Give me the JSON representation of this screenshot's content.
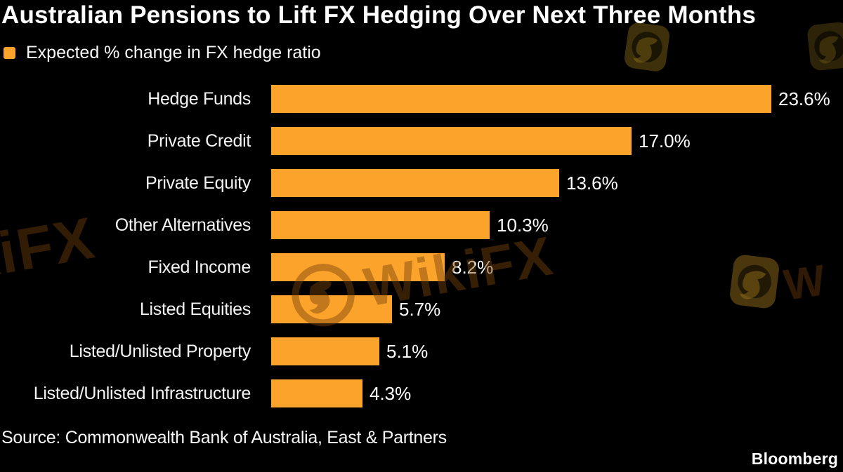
{
  "title": "Australian Pensions to Lift FX Hedging Over Next Three Months",
  "legend": {
    "label": "Expected % change in FX hedge ratio",
    "swatch_color": "#FCA32B"
  },
  "chart_data": {
    "type": "bar",
    "orientation": "horizontal",
    "title": "Australian Pensions to Lift FX Hedging Over Next Three Months",
    "series_label": "Expected % change in FX hedge ratio",
    "categories": [
      "Hedge Funds",
      "Private Credit",
      "Private Equity",
      "Other Alternatives",
      "Fixed Income",
      "Listed Equities",
      "Listed/Unlisted Property",
      "Listed/Unlisted Infrastructure"
    ],
    "values": [
      23.6,
      17.0,
      13.6,
      10.3,
      8.2,
      5.7,
      5.1,
      4.3
    ],
    "value_labels": [
      "23.6%",
      "17.0%",
      "13.6%",
      "10.3%",
      "8.2%",
      "5.7%",
      "5.1%",
      "4.3%"
    ],
    "value_suffix": "%",
    "xlim": [
      0,
      23.6
    ],
    "bar_color": "#FCA32B",
    "background_color": "#000000",
    "text_color": "#FFFFFF",
    "grid": false,
    "legend_position": "top-left"
  },
  "source": "Source: Commonwealth Bank of Australia, East & Partners",
  "brand": "Bloomberg",
  "watermark": {
    "text": "WikiFX",
    "partial": "W"
  }
}
